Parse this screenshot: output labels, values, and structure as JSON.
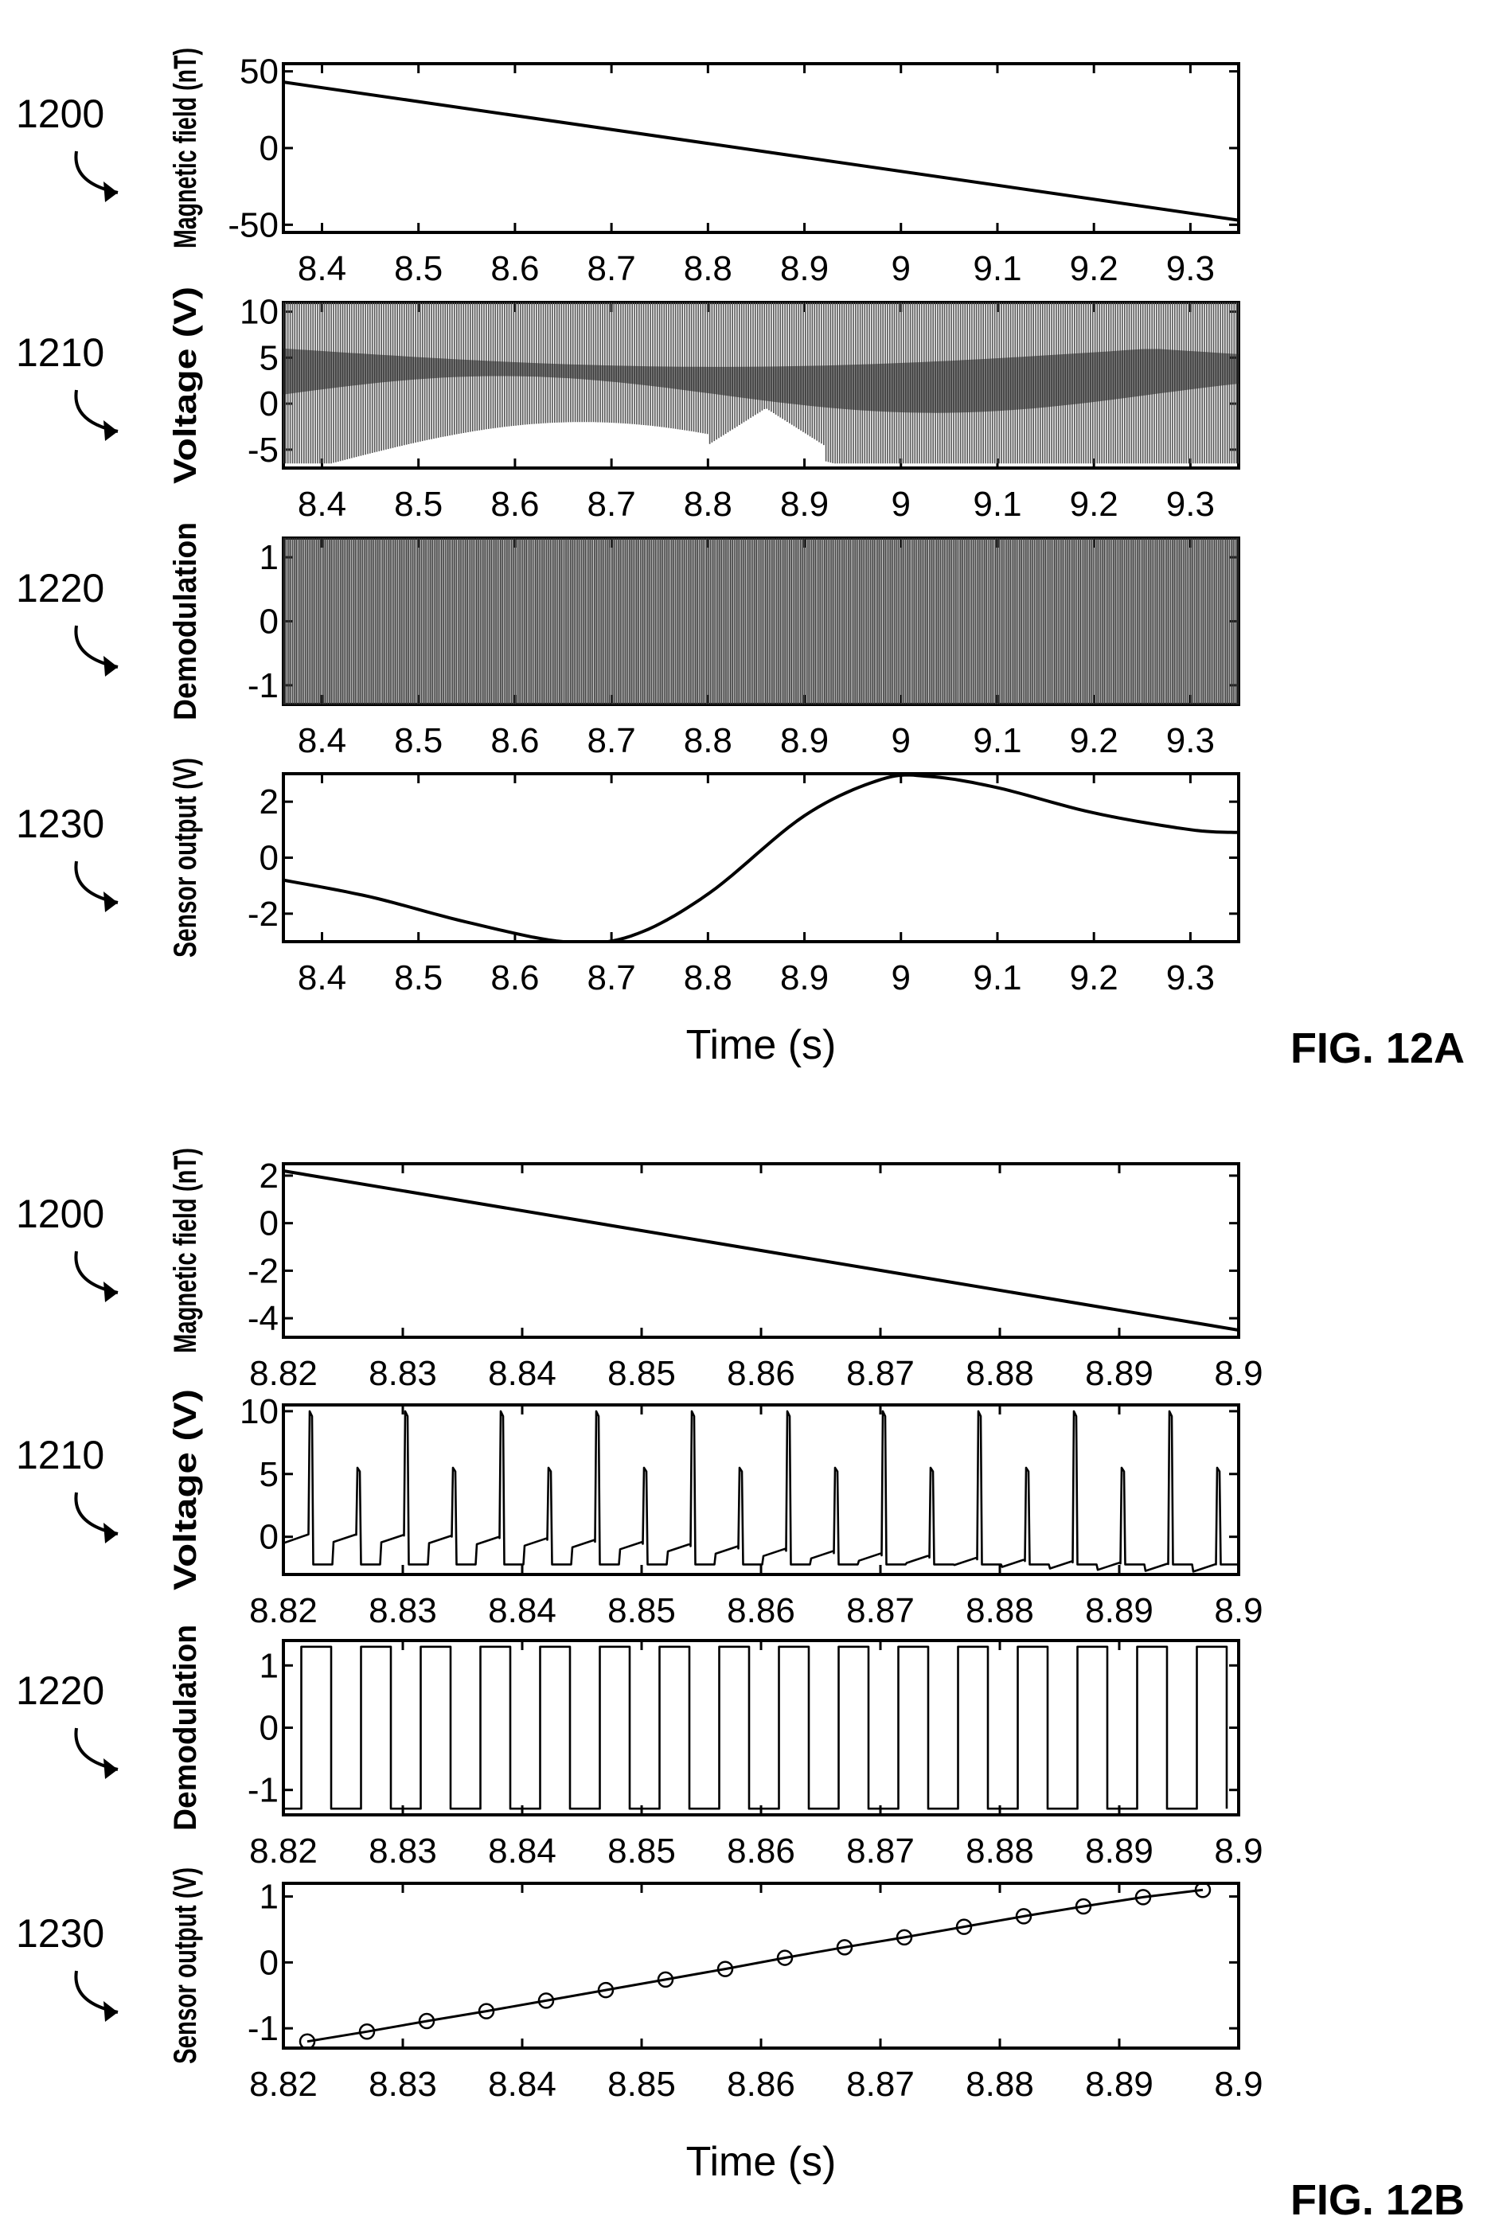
{
  "figures": [
    {
      "caption": "FIG. 12A",
      "xlabel": "Time (s)",
      "xticks": [
        "8.4",
        "8.5",
        "8.6",
        "8.7",
        "8.8",
        "8.9",
        "9",
        "9.1",
        "9.2",
        "9.3"
      ],
      "panels": [
        {
          "ref": "1200",
          "ylabel": "Magnetic field (nT)",
          "yticks": [
            "50",
            "0",
            "-50"
          ]
        },
        {
          "ref": "1210",
          "ylabel": "Voltage (V)",
          "yticks": [
            "10",
            "5",
            "0",
            "-5"
          ]
        },
        {
          "ref": "1220",
          "ylabel": "Demodulation",
          "yticks": [
            "1",
            "0",
            "-1"
          ]
        },
        {
          "ref": "1230",
          "ylabel": "Sensor output (V)",
          "yticks": [
            "2",
            "0",
            "-2"
          ]
        }
      ]
    },
    {
      "caption": "FIG. 12B",
      "xlabel": "Time (s)",
      "xticks": [
        "8.82",
        "8.83",
        "8.84",
        "8.85",
        "8.86",
        "8.87",
        "8.88",
        "8.89",
        "8.9"
      ],
      "panels": [
        {
          "ref": "1200",
          "ylabel": "Magnetic field (nT)",
          "yticks": [
            "2",
            "0",
            "-2",
            "-4"
          ]
        },
        {
          "ref": "1210",
          "ylabel": "Voltage (V)",
          "yticks": [
            "10",
            "5",
            "0"
          ]
        },
        {
          "ref": "1220",
          "ylabel": "Demodulation",
          "yticks": [
            "1",
            "0",
            "-1"
          ]
        },
        {
          "ref": "1230",
          "ylabel": "Sensor output (V)",
          "yticks": [
            "1",
            "0",
            "-1"
          ]
        }
      ]
    }
  ],
  "chart_data": [
    {
      "type": "line",
      "figure": "FIG. 12A",
      "panel": "1200",
      "ylabel": "Magnetic field (nT)",
      "xlabel": "Time (s)",
      "xlim": [
        8.36,
        9.35
      ],
      "ylim": [
        -55,
        55
      ],
      "x": [
        8.36,
        9.35
      ],
      "y": [
        43,
        -47
      ]
    },
    {
      "type": "line",
      "figure": "FIG. 12A",
      "panel": "1210",
      "ylabel": "Voltage (V)",
      "xlabel": "Time (s)",
      "xlim": [
        8.36,
        9.35
      ],
      "ylim": [
        -7,
        11
      ],
      "signal": "dense oscillation between -7 and 11 V with envelope modulation"
    },
    {
      "type": "line",
      "figure": "FIG. 12A",
      "panel": "1220",
      "ylabel": "Demodulation",
      "xlabel": "Time (s)",
      "xlim": [
        8.36,
        9.35
      ],
      "ylim": [
        -1.3,
        1.3
      ],
      "signal": "dense square wave between -1.3 and 1.3"
    },
    {
      "type": "line",
      "figure": "FIG. 12A",
      "panel": "1230",
      "ylabel": "Sensor output (V)",
      "xlabel": "Time (s)",
      "xlim": [
        8.36,
        9.35
      ],
      "ylim": [
        -3,
        3
      ],
      "x": [
        8.36,
        8.45,
        8.55,
        8.65,
        8.72,
        8.8,
        8.9,
        8.98,
        9.03,
        9.1,
        9.2,
        9.3,
        9.35
      ],
      "y": [
        -0.8,
        -1.4,
        -2.3,
        -3.0,
        -2.8,
        -1.3,
        1.5,
        2.8,
        2.9,
        2.5,
        1.6,
        1.0,
        0.9
      ]
    },
    {
      "type": "line",
      "figure": "FIG. 12B",
      "panel": "1200",
      "ylabel": "Magnetic field (nT)",
      "xlabel": "Time (s)",
      "xlim": [
        8.82,
        8.9
      ],
      "ylim": [
        -4.8,
        2.5
      ],
      "x": [
        8.82,
        8.9
      ],
      "y": [
        2.2,
        -4.5
      ]
    },
    {
      "type": "line",
      "figure": "FIG. 12B",
      "panel": "1210",
      "ylabel": "Voltage (V)",
      "xlabel": "Time (s)",
      "xlim": [
        8.82,
        8.9
      ],
      "ylim": [
        -3,
        10.5
      ],
      "signal": "periodic pulse train, spikes to 10 V, baseline near -2 V",
      "pulse_times": [
        8.8225,
        8.8265,
        8.8305,
        8.8345,
        8.8385,
        8.8425,
        8.8465,
        8.8505,
        8.8545,
        8.8585,
        8.8625,
        8.8665,
        8.8705,
        8.8745,
        8.8785,
        8.8825,
        8.8865,
        8.8905,
        8.8945,
        8.8985
      ]
    },
    {
      "type": "line",
      "figure": "FIG. 12B",
      "panel": "1220",
      "ylabel": "Demodulation",
      "xlabel": "Time (s)",
      "xlim": [
        8.82,
        8.9
      ],
      "ylim": [
        -1.4,
        1.4
      ],
      "signal": "square wave between -1.3 and 1.3, period 0.005 s"
    },
    {
      "type": "line",
      "figure": "FIG. 12B",
      "panel": "1230",
      "ylabel": "Sensor output (V)",
      "xlabel": "Time (s)",
      "xlim": [
        8.82,
        8.9
      ],
      "ylim": [
        -1.3,
        1.2
      ],
      "x": [
        8.822,
        8.827,
        8.832,
        8.837,
        8.842,
        8.847,
        8.852,
        8.857,
        8.862,
        8.867,
        8.872,
        8.877,
        8.882,
        8.887,
        8.892,
        8.897
      ],
      "y": [
        -1.2,
        -1.05,
        -0.89,
        -0.74,
        -0.58,
        -0.42,
        -0.26,
        -0.1,
        0.07,
        0.23,
        0.38,
        0.54,
        0.7,
        0.85,
        0.99,
        1.1
      ]
    }
  ]
}
